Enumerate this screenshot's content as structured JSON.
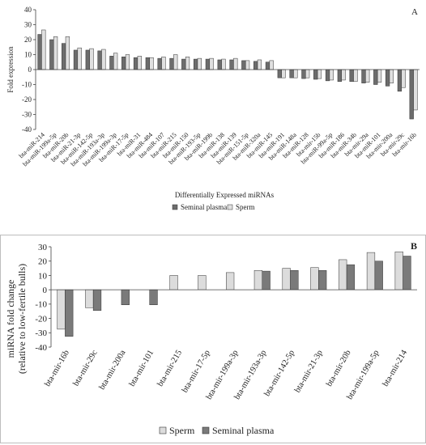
{
  "chart_data": [
    {
      "type": "bar",
      "panel_letter": "A",
      "ylabel": "Fold expression",
      "xlabel": "Differentially Expressed miRNAs",
      "ylim": [
        -40,
        40
      ],
      "yticks": [
        40,
        30,
        20,
        10,
        0,
        -10,
        -20,
        -30,
        -40
      ],
      "grid": false,
      "legend_position": "bottom",
      "categories": [
        "bta-miR-214",
        "bta-miR-199a-5p",
        "bta-miR-20b",
        "bta-miR-21-3p",
        "bta-miR-142-5p",
        "bta-miR-193a-3p",
        "bta-miR-199a-3p",
        "bta-miR-17-5p",
        "bta-miR-31",
        "bta-miR-484",
        "bta-miR-107",
        "bta-miR-215",
        "bta-miR-150",
        "bta-miR-193-5p",
        "bta-miR-199b",
        "bta-miR-138",
        "bta-miR-139",
        "bta-miR-151-5p",
        "bta-miR-320a",
        "bta-miR-145",
        "bta-miR-191",
        "bta-miR-148a",
        "bta-miR-128",
        "bta-mir-15b",
        "bta-miR-99a-5p",
        "bta-miR-186",
        "bta-miR-34b",
        "bta-mir-29a",
        "bta-miR-101",
        "bta-mir-200a",
        "bta-mir-29c",
        "bta-mir-16b"
      ],
      "series": [
        {
          "name": "Seminal plasma",
          "color": "#6d6d6d",
          "values": [
            23.5,
            20,
            17.5,
            13,
            13,
            12.5,
            9,
            8.5,
            8,
            8,
            7.5,
            7.5,
            7,
            7,
            7,
            6.5,
            6.5,
            6,
            5.5,
            5,
            -5.5,
            -5.5,
            -6,
            -6.5,
            -7.5,
            -8,
            -8,
            -9,
            -10,
            -11,
            -14.5,
            -33
          ]
        },
        {
          "name": "Sperm",
          "color": "#e0e0e0",
          "values": [
            26.5,
            22,
            22,
            14.5,
            14,
            13.5,
            11,
            10,
            9,
            8,
            8.5,
            10,
            8.5,
            7.5,
            7.5,
            7,
            7.5,
            6,
            6.5,
            6,
            -5.5,
            -5.5,
            -5.5,
            -6,
            -7,
            -7,
            -8,
            -8.5,
            -8.5,
            -9,
            -12,
            -27
          ]
        }
      ]
    },
    {
      "type": "bar",
      "panel_letter": "B",
      "ylabel": "miRNA fold change",
      "ylabel2": "(relative to low-fertile bulls)",
      "ylim": [
        -40,
        30
      ],
      "yticks": [
        30,
        20,
        10,
        0,
        -10,
        -20,
        -30,
        -40
      ],
      "grid": false,
      "legend_position": "bottom",
      "categories": [
        "bta-mir-16b",
        "bta-mir-29c",
        "bta-mir-200a",
        "bta-mir-101",
        "bta-mir-215",
        "bta-mir-17-5p",
        "bta-mir-199a-3p",
        "bta-mir-193a-3p",
        "bta-mir-142-5p",
        "bta-mir-21-3p",
        "bta-mir-20b",
        "bta-mir-199a-5p",
        "bta-mir-214"
      ],
      "series": [
        {
          "name": "Sperm",
          "color": "#dcdcdc",
          "values": [
            -27.5,
            -12.5,
            null,
            null,
            10,
            10,
            12,
            13.5,
            15,
            15.5,
            21,
            26,
            26.5
          ]
        },
        {
          "name": "Seminal plasma",
          "color": "#7a7a7a",
          "values": [
            -32.5,
            -14.5,
            -10.5,
            -10.5,
            null,
            null,
            null,
            13,
            13.5,
            13.5,
            17.5,
            20,
            23.5
          ]
        }
      ]
    }
  ]
}
